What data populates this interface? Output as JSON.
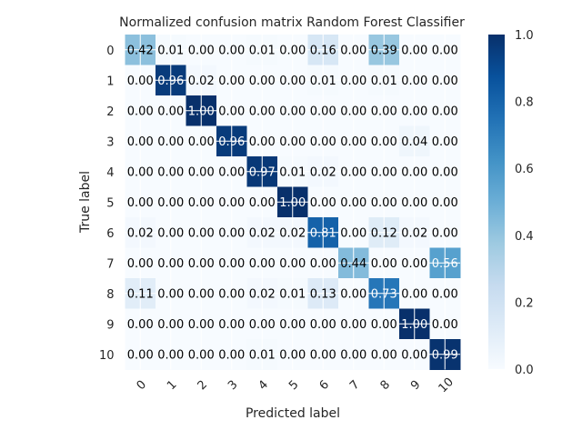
{
  "chart_data": {
    "type": "heatmap",
    "title": "Normalized confusion matrix Random Forest Classifier",
    "xlabel": "Predicted label",
    "ylabel": "True label",
    "x_ticks": [
      "0",
      "1",
      "2",
      "3",
      "4",
      "5",
      "6",
      "7",
      "8",
      "9",
      "10"
    ],
    "y_ticks": [
      "0",
      "1",
      "2",
      "3",
      "4",
      "5",
      "6",
      "7",
      "8",
      "9",
      "10"
    ],
    "values": [
      [
        0.42,
        0.01,
        0.0,
        0.0,
        0.01,
        0.0,
        0.16,
        0.0,
        0.39,
        0.0,
        0.0
      ],
      [
        0.0,
        0.96,
        0.02,
        0.0,
        0.0,
        0.0,
        0.01,
        0.0,
        0.01,
        0.0,
        0.0
      ],
      [
        0.0,
        0.0,
        1.0,
        0.0,
        0.0,
        0.0,
        0.0,
        0.0,
        0.0,
        0.0,
        0.0
      ],
      [
        0.0,
        0.0,
        0.0,
        0.96,
        0.0,
        0.0,
        0.0,
        0.0,
        0.0,
        0.04,
        0.0
      ],
      [
        0.0,
        0.0,
        0.0,
        0.0,
        0.97,
        0.01,
        0.02,
        0.0,
        0.0,
        0.0,
        0.0
      ],
      [
        0.0,
        0.0,
        0.0,
        0.0,
        0.0,
        1.0,
        0.0,
        0.0,
        0.0,
        0.0,
        0.0
      ],
      [
        0.02,
        0.0,
        0.0,
        0.0,
        0.02,
        0.02,
        0.81,
        0.0,
        0.12,
        0.02,
        0.0
      ],
      [
        0.0,
        0.0,
        0.0,
        0.0,
        0.0,
        0.0,
        0.0,
        0.44,
        0.0,
        0.0,
        0.56
      ],
      [
        0.11,
        0.0,
        0.0,
        0.0,
        0.02,
        0.01,
        0.13,
        0.0,
        0.73,
        0.0,
        0.0
      ],
      [
        0.0,
        0.0,
        0.0,
        0.0,
        0.0,
        0.0,
        0.0,
        0.0,
        0.0,
        1.0,
        0.0
      ],
      [
        0.0,
        0.0,
        0.0,
        0.0,
        0.01,
        0.0,
        0.0,
        0.0,
        0.0,
        0.0,
        0.99
      ]
    ],
    "value_format": "0.00",
    "colormap": "Blues",
    "colorbar": {
      "range": [
        0.0,
        1.0
      ],
      "ticks": [
        "0.0",
        "0.2",
        "0.4",
        "0.6",
        "0.8",
        "1.0"
      ]
    },
    "grid": true,
    "grid_color": "#ffffff"
  }
}
